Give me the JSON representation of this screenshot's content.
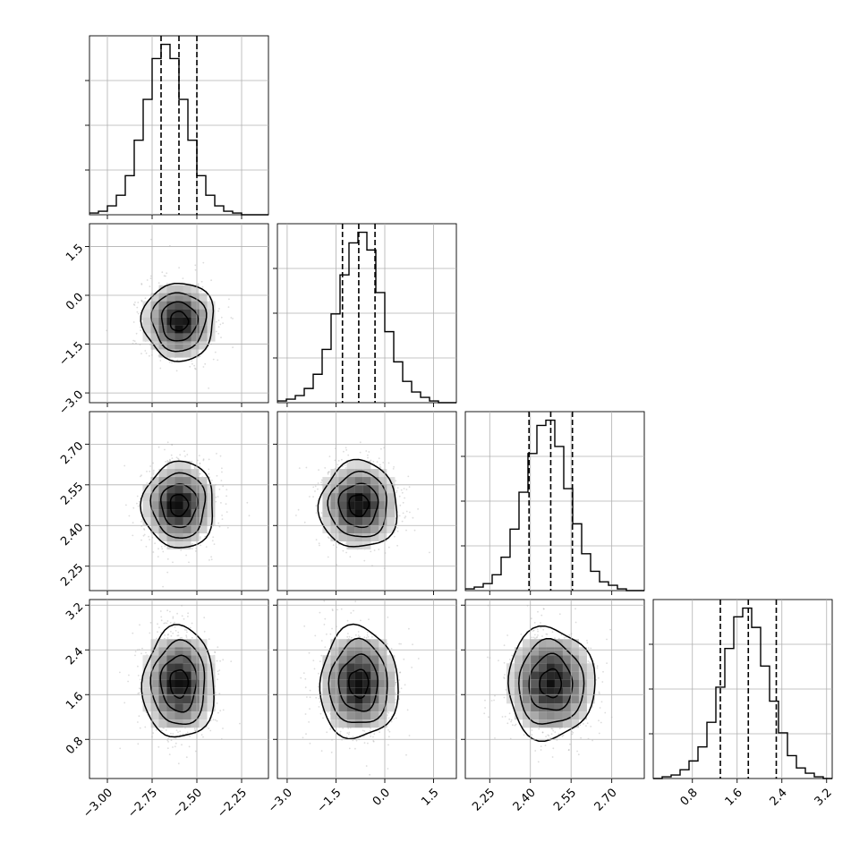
{
  "chart_data": {
    "type": "corner",
    "grid": true,
    "parameters": [
      {
        "mean": -2.6,
        "sigma": 0.1,
        "range": [
          -3.1,
          -2.1
        ],
        "ticks": [
          -3.0,
          -2.75,
          -2.5,
          -2.25
        ],
        "tick_labels": [
          "−3.00",
          "−2.75",
          "−2.50",
          "−2.25"
        ],
        "quantiles": [
          -2.7,
          -2.6,
          -2.5
        ]
      },
      {
        "mean": -0.8,
        "sigma": 0.6,
        "range": [
          -3.3,
          2.2
        ],
        "ticks": [
          -3.0,
          -1.5,
          0.0,
          1.5
        ],
        "tick_labels": [
          "−3.0",
          "−1.5",
          "0.0",
          "1.5"
        ],
        "quantiles": [
          -1.3,
          -0.8,
          -0.3
        ]
      },
      {
        "mean": 2.475,
        "sigma": 0.08,
        "range": [
          2.16,
          2.82
        ],
        "ticks": [
          2.25,
          2.4,
          2.55,
          2.7
        ],
        "tick_labels": [
          "2.25",
          "2.40",
          "2.55",
          "2.70"
        ],
        "quantiles": [
          2.395,
          2.475,
          2.555
        ]
      },
      {
        "mean": 1.8,
        "sigma": 0.5,
        "range": [
          0.1,
          3.3
        ],
        "ticks": [
          0.8,
          1.6,
          2.4,
          3.2
        ],
        "tick_labels": [
          "0.8",
          "1.6",
          "2.4",
          "3.2"
        ],
        "quantiles": [
          1.3,
          1.8,
          2.3
        ]
      }
    ],
    "histograms": [
      {
        "bin_counts": [
          1,
          2,
          5,
          11,
          22,
          42,
          65,
          88,
          96,
          88,
          65,
          42,
          22,
          11,
          5,
          2,
          1,
          0,
          0,
          0
        ]
      },
      {
        "bin_counts": [
          1,
          2,
          4,
          8,
          16,
          30,
          50,
          72,
          90,
          96,
          86,
          62,
          40,
          23,
          12,
          6,
          3,
          1,
          0,
          0
        ]
      },
      {
        "bin_counts": [
          1,
          2,
          4,
          9,
          19,
          35,
          56,
          78,
          94,
          97,
          82,
          58,
          38,
          21,
          11,
          5,
          3,
          1,
          0,
          0
        ]
      },
      {
        "bin_counts": [
          0,
          1,
          2,
          5,
          10,
          18,
          32,
          52,
          74,
          92,
          97,
          86,
          64,
          44,
          26,
          13,
          6,
          3,
          1,
          0
        ]
      }
    ],
    "contour_levels_sigma": [
      0.5,
      1.0,
      1.5,
      2.0
    ]
  }
}
